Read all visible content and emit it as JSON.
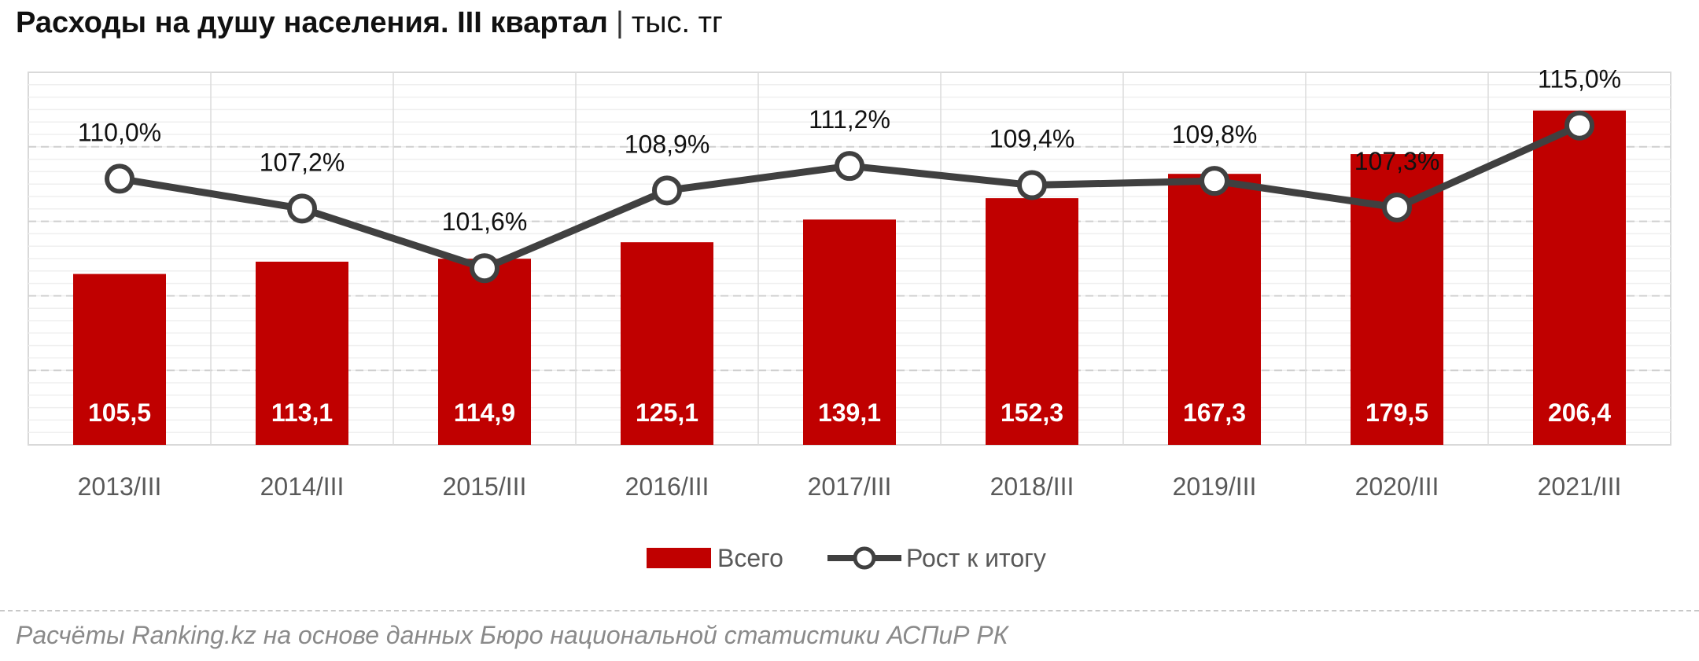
{
  "title": {
    "main": "Расходы на душу населения. III квартал",
    "separator": "|",
    "unit": "тыс. тг"
  },
  "chart_data": {
    "type": "bar",
    "categories": [
      "2013/III",
      "2014/III",
      "2015/III",
      "2016/III",
      "2017/III",
      "2018/III",
      "2019/III",
      "2020/III",
      "2021/III"
    ],
    "series": [
      {
        "name": "Всего",
        "type": "bar",
        "color": "#c00000",
        "values": [
          105.5,
          113.1,
          114.9,
          125.1,
          139.1,
          152.3,
          167.3,
          179.5,
          206.4
        ],
        "labels": [
          "105,5",
          "113,1",
          "114,9",
          "125,1",
          "139,1",
          "152,3",
          "167,3",
          "179,5",
          "206,4"
        ]
      },
      {
        "name": "Рост к итогу",
        "type": "line",
        "color": "#404040",
        "values": [
          110.0,
          107.2,
          101.6,
          108.9,
          111.2,
          109.4,
          109.8,
          107.3,
          115.0
        ],
        "labels": [
          "110,0%",
          "107,2%",
          "101,6%",
          "108,9%",
          "111,2%",
          "109,4%",
          "109,8%",
          "107,3%",
          "115,0%"
        ]
      }
    ],
    "legend_position": "bottom",
    "grid": true
  },
  "source": "Расчёты Ranking.kz на основе данных Бюро национальной статистики АСПиР РК"
}
